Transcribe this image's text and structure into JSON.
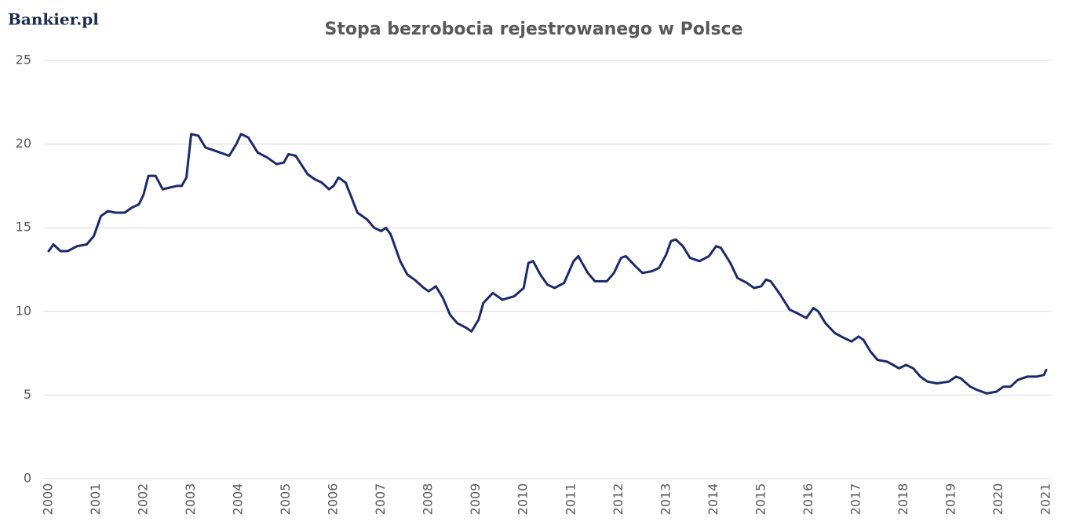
{
  "logo": "Bankier.pl",
  "chart_data": {
    "type": "line",
    "title": "Stopa bezrobocia rejestrowanego w Polsce",
    "color": "#1b2a6b",
    "grid": true,
    "xlim": [
      2000,
      2021
    ],
    "xticks": [
      2000,
      2001,
      2002,
      2003,
      2004,
      2005,
      2006,
      2007,
      2008,
      2009,
      2010,
      2011,
      2012,
      2013,
      2014,
      2015,
      2016,
      2017,
      2018,
      2019,
      2020,
      2021
    ],
    "ylim": [
      0,
      25
    ],
    "yticks": [
      0,
      5,
      10,
      15,
      20,
      25
    ],
    "x": [
      2000.0,
      2000.1,
      2000.25,
      2000.4,
      2000.6,
      2000.8,
      2000.95,
      2001.1,
      2001.25,
      2001.4,
      2001.6,
      2001.75,
      2001.9,
      2002.0,
      2002.1,
      2002.25,
      2002.4,
      2002.55,
      2002.7,
      2002.8,
      2002.9,
      2003.0,
      2003.15,
      2003.3,
      2003.5,
      2003.8,
      2003.95,
      2004.05,
      2004.2,
      2004.4,
      2004.6,
      2004.8,
      2004.95,
      2005.05,
      2005.2,
      2005.45,
      2005.6,
      2005.75,
      2005.9,
      2006.0,
      2006.1,
      2006.25,
      2006.35,
      2006.5,
      2006.7,
      2006.85,
      2007.0,
      2007.1,
      2007.2,
      2007.4,
      2007.55,
      2007.7,
      2007.9,
      2008.0,
      2008.15,
      2008.3,
      2008.45,
      2008.6,
      2008.8,
      2008.9,
      2009.05,
      2009.15,
      2009.35,
      2009.55,
      2009.8,
      2010.0,
      2010.1,
      2010.2,
      2010.35,
      2010.5,
      2010.65,
      2010.85,
      2011.05,
      2011.15,
      2011.35,
      2011.5,
      2011.75,
      2011.9,
      2012.05,
      2012.15,
      2012.35,
      2012.5,
      2012.7,
      2012.85,
      2013.0,
      2013.1,
      2013.2,
      2013.35,
      2013.5,
      2013.7,
      2013.9,
      2014.05,
      2014.15,
      2014.35,
      2014.5,
      2014.7,
      2014.85,
      2015.0,
      2015.1,
      2015.2,
      2015.4,
      2015.6,
      2015.75,
      2015.95,
      2016.1,
      2016.2,
      2016.35,
      2016.55,
      2016.75,
      2016.9,
      2017.05,
      2017.15,
      2017.3,
      2017.45,
      2017.65,
      2017.9,
      2018.05,
      2018.2,
      2018.35,
      2018.5,
      2018.7,
      2018.95,
      2019.1,
      2019.2,
      2019.4,
      2019.55,
      2019.75,
      2019.95,
      2020.1,
      2020.25,
      2020.4,
      2020.6,
      2020.8,
      2020.95,
      2021.0
    ],
    "values": [
      13.6,
      14.0,
      13.6,
      13.6,
      13.9,
      14.0,
      14.5,
      15.7,
      16.0,
      15.9,
      15.9,
      16.2,
      16.4,
      17.0,
      18.1,
      18.1,
      17.3,
      17.4,
      17.5,
      17.5,
      18.0,
      20.6,
      20.5,
      19.8,
      19.6,
      19.3,
      20.0,
      20.6,
      20.4,
      19.5,
      19.2,
      18.8,
      18.9,
      19.4,
      19.3,
      18.2,
      17.9,
      17.7,
      17.3,
      17.5,
      18.0,
      17.7,
      17.0,
      15.9,
      15.5,
      15.0,
      14.8,
      15.0,
      14.6,
      13.0,
      12.2,
      11.9,
      11.4,
      11.2,
      11.5,
      10.8,
      9.8,
      9.3,
      9.0,
      8.8,
      9.5,
      10.5,
      11.1,
      10.7,
      10.9,
      11.4,
      12.9,
      13.0,
      12.2,
      11.6,
      11.4,
      11.7,
      13.0,
      13.3,
      12.3,
      11.8,
      11.8,
      12.3,
      13.2,
      13.3,
      12.7,
      12.3,
      12.4,
      12.6,
      13.4,
      14.2,
      14.3,
      13.9,
      13.2,
      13.0,
      13.3,
      13.9,
      13.8,
      12.9,
      12.0,
      11.7,
      11.4,
      11.5,
      11.9,
      11.8,
      11.0,
      10.1,
      9.9,
      9.6,
      10.2,
      10.0,
      9.3,
      8.7,
      8.4,
      8.2,
      8.5,
      8.3,
      7.6,
      7.1,
      7.0,
      6.6,
      6.8,
      6.6,
      6.1,
      5.8,
      5.7,
      5.8,
      6.1,
      6.0,
      5.5,
      5.3,
      5.1,
      5.2,
      5.5,
      5.5,
      5.9,
      6.1,
      6.1,
      6.2,
      6.5
    ]
  }
}
